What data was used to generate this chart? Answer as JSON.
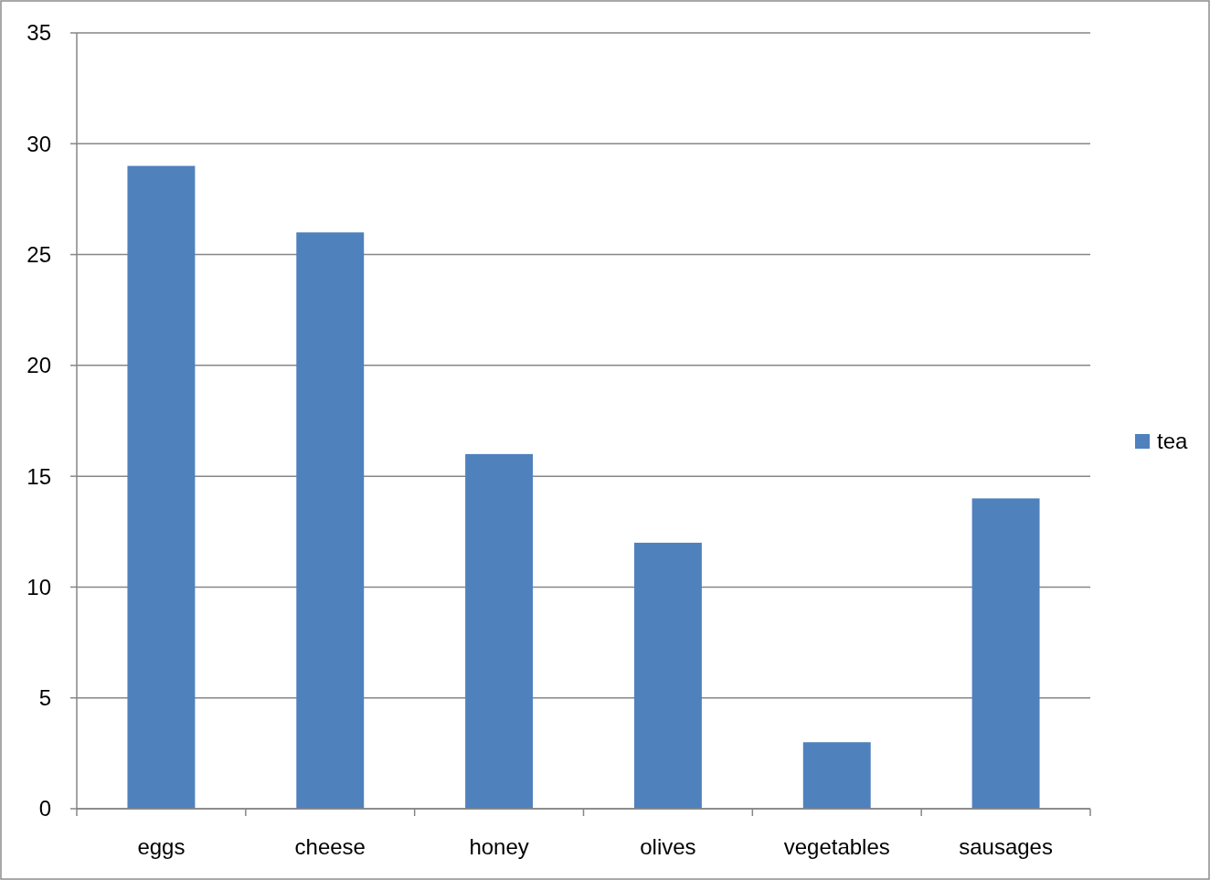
{
  "chart_data": {
    "type": "bar",
    "categories": [
      "eggs",
      "cheese",
      "honey",
      "olives",
      "vegetables",
      "sausages"
    ],
    "series": [
      {
        "name": "tea",
        "color": "#4f81bd",
        "values": [
          29,
          26,
          16,
          12,
          3,
          14
        ]
      }
    ],
    "ylim": [
      0,
      35
    ],
    "yticks": [
      0,
      5,
      10,
      15,
      20,
      25,
      30,
      35
    ],
    "grid": "y",
    "legend": "right"
  }
}
